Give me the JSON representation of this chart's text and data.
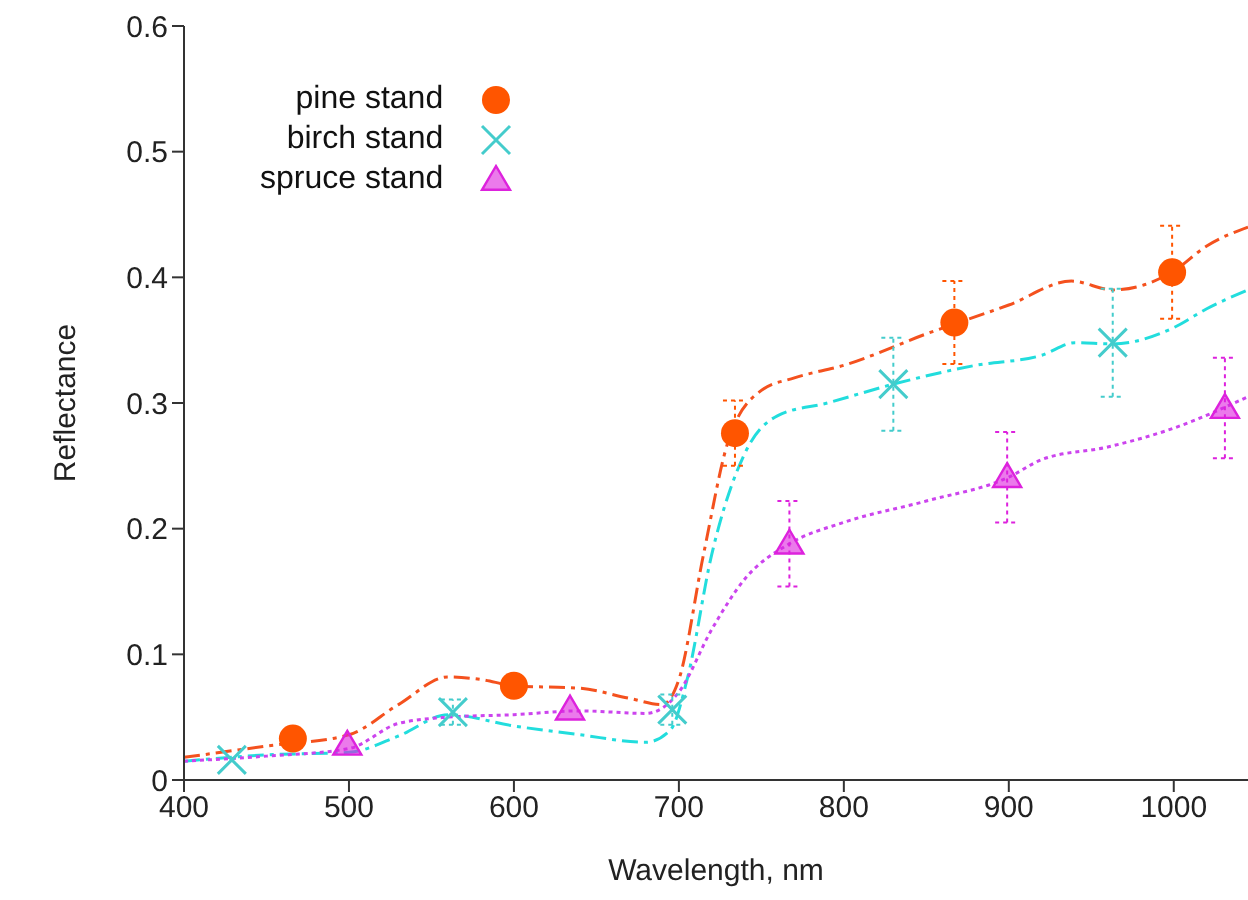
{
  "chart_data": {
    "type": "line",
    "xlabel": "Wavelength, nm",
    "ylabel": "Reflectance",
    "xlim": [
      400,
      1045
    ],
    "xticks": [
      400,
      500,
      600,
      700,
      800,
      900,
      1000
    ],
    "ylim": [
      0,
      0.6
    ],
    "yticks": [
      0,
      0.1,
      0.2,
      0.3,
      0.4,
      0.5,
      0.6
    ],
    "grid": false,
    "legend": "top left",
    "series": [
      {
        "color": "#f4511e",
        "line_style": "dashed",
        "marker": "none",
        "x": [
          400,
          450,
          500,
          530,
          560,
          580,
          600,
          640,
          670,
          690,
          700,
          715,
          730,
          750,
          770,
          800,
          850,
          900,
          938,
          963,
          1000,
          1020,
          1045
        ],
        "values": [
          0.018,
          0.027,
          0.036,
          0.06,
          0.082,
          0.08,
          0.075,
          0.073,
          0.065,
          0.06,
          0.08,
          0.18,
          0.27,
          0.31,
          0.32,
          0.33,
          0.355,
          0.378,
          0.397,
          0.39,
          0.405,
          0.425,
          0.44
        ]
      },
      {
        "color": "#22dddd",
        "line_style": "dashed",
        "marker": "none",
        "x": [
          400,
          450,
          500,
          530,
          560,
          600,
          640,
          680,
          695,
          705,
          720,
          740,
          760,
          790,
          830,
          880,
          920,
          940,
          963,
          1000,
          1020,
          1045
        ],
        "values": [
          0.015,
          0.02,
          0.022,
          0.035,
          0.052,
          0.043,
          0.036,
          0.03,
          0.04,
          0.08,
          0.18,
          0.26,
          0.29,
          0.3,
          0.315,
          0.33,
          0.338,
          0.348,
          0.347,
          0.36,
          0.375,
          0.39
        ]
      },
      {
        "color": "#cc44ee",
        "line_style": "dotted",
        "marker": "none",
        "x": [
          400,
          450,
          500,
          530,
          560,
          600,
          640,
          680,
          700,
          720,
          740,
          767,
          800,
          850,
          900,
          920,
          960,
          1000,
          1045
        ],
        "values": [
          0.015,
          0.019,
          0.025,
          0.045,
          0.05,
          0.052,
          0.055,
          0.053,
          0.07,
          0.12,
          0.16,
          0.188,
          0.205,
          0.222,
          0.241,
          0.255,
          0.265,
          0.28,
          0.305
        ]
      },
      {
        "type": "scatter",
        "name": "pine stand",
        "color": "#ff5500",
        "marker": "circle",
        "x": [
          466,
          600,
          734,
          867,
          999
        ],
        "values": [
          0.033,
          0.075,
          0.276,
          0.364,
          0.404
        ],
        "errors": [
          null,
          null,
          0.026,
          0.033,
          0.037
        ]
      },
      {
        "type": "scatter",
        "name": "birch stand",
        "color": "#44cccc",
        "marker": "cross",
        "x": [
          429,
          563,
          696,
          830,
          963
        ],
        "values": [
          0.016,
          0.054,
          0.056,
          0.315,
          0.348
        ],
        "errors": [
          null,
          0.01,
          0.012,
          0.037,
          0.043
        ]
      },
      {
        "type": "scatter",
        "name": "spruce stand",
        "color": "#dd22dd",
        "marker": "triangle",
        "x": [
          499,
          634,
          767,
          899,
          1031
        ],
        "values": [
          0.028,
          0.056,
          0.188,
          0.241,
          0.296
        ],
        "errors": [
          null,
          null,
          0.034,
          0.036,
          0.04
        ]
      }
    ]
  }
}
